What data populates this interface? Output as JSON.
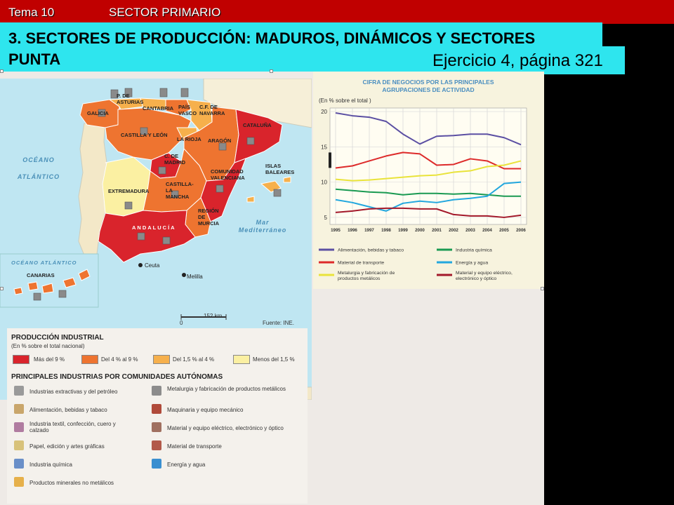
{
  "header": {
    "tema": "Tema 10",
    "sector": "SECTOR PRIMARIO",
    "title": "3. SECTORES DE PRODUCCIÓN: MADUROS, DINÁMICOS Y SECTORES PUNTA",
    "exercise": "Ejercicio 4, página 321"
  },
  "map": {
    "regions": [
      "GALICIA",
      "P. DE ASTURIAS",
      "CANTABRIA",
      "PAÍS VASCO",
      "C.F. DE NAVARRA",
      "CASTILLA Y LEÓN",
      "LA RIOJA",
      "ARAGÓN",
      "CATALUÑA",
      "C. DE MADRID",
      "EXTREMADURA",
      "CASTILLA-LA MANCHA",
      "COMUNIDAD VALENCIANA",
      "ISLAS BALEARES",
      "REGIÓN DE MURCIA",
      "ANDALUCÍA",
      "CANARIAS"
    ],
    "cities": [
      "Ceuta",
      "Melilla"
    ],
    "seas": [
      "OCÉANO ATLÁNTICO",
      "Mar Mediterráneo",
      "OCÉANO ATLÁNTICO"
    ],
    "scale": {
      "zero": "0",
      "value": "152 km"
    },
    "source": "Fuente: INE."
  },
  "legend": {
    "title": "PRODUCCIÓN INDUSTRIAL",
    "subtitle": "(En % sobre el total nacional)",
    "classes": [
      {
        "label": "Más del 9 %",
        "color": "#d9242c"
      },
      {
        "label": "Del 4 % al 9 %",
        "color": "#ee7430"
      },
      {
        "label": "Del 1,5 % al 4 %",
        "color": "#f6b04c"
      },
      {
        "label": "Menos del 1,5 %",
        "color": "#fbf0a2"
      }
    ],
    "industries_title": "PRINCIPALES INDUSTRIAS POR COMUNIDADES AUTÓNOMAS",
    "industries": [
      {
        "label": "Industrias extractivas y del petróleo",
        "icon": "oil-rig-icon"
      },
      {
        "label": "Metalurgia y fabricación de productos metálicos",
        "icon": "factory-icon"
      },
      {
        "label": "Alimentación, bebidas y tabaco",
        "icon": "food-icon"
      },
      {
        "label": "Maquinaria y equipo mecánico",
        "icon": "gear-wrench-icon"
      },
      {
        "label": "Industria textil, confección, cuero y calzado",
        "icon": "textile-icon"
      },
      {
        "label": "Material y equipo eléctrico, electrónico y óptico",
        "icon": "computer-icon"
      },
      {
        "label": "Papel, edición y artes gráficas",
        "icon": "paper-icon"
      },
      {
        "label": "Material de transporte",
        "icon": "car-icon"
      },
      {
        "label": "Industria química",
        "icon": "flask-icon"
      },
      {
        "label": "Energía y agua",
        "icon": "energy-water-icon"
      },
      {
        "label": "Productos minerales no metálicos",
        "icon": "minerals-icon"
      }
    ]
  },
  "chart_data": {
    "type": "line",
    "title": "CIFRA DE NEGOCIOS POR LAS PRINCIPALES AGRUPACIONES DE ACTIVIDAD",
    "ylabel": "(En % sobre el total )",
    "x": [
      "1995",
      "1996",
      "1997",
      "1998",
      "1999",
      "2000",
      "2001",
      "2002",
      "2003",
      "2004",
      "2005",
      "2006"
    ],
    "yticks": [
      "20",
      "15",
      "10",
      "5"
    ],
    "ylim": [
      4,
      20.5
    ],
    "series": [
      {
        "name": "Alimentación, bebidas y tabaco",
        "color": "#5b4fa3",
        "values": [
          19.8,
          19.4,
          19.2,
          18.6,
          16.8,
          15.4,
          16.5,
          16.6,
          16.8,
          16.8,
          16.3,
          15.3
        ]
      },
      {
        "name": "Industria química",
        "color": "#1a9a52",
        "values": [
          9.0,
          8.8,
          8.6,
          8.5,
          8.2,
          8.4,
          8.4,
          8.3,
          8.4,
          8.2,
          8.0,
          8.0
        ]
      },
      {
        "name": "Material de transporte",
        "color": "#dd2a2a",
        "values": [
          12.0,
          12.3,
          13.0,
          13.7,
          14.2,
          14.0,
          12.4,
          12.5,
          13.3,
          13.0,
          11.9,
          11.9
        ]
      },
      {
        "name": "Energía y agua",
        "color": "#22a7de",
        "values": [
          7.5,
          7.1,
          6.5,
          5.9,
          7.0,
          7.3,
          7.1,
          7.5,
          7.7,
          8.0,
          9.8,
          10.0
        ]
      },
      {
        "name": "Metalurgia y fabricación de productos metálicos",
        "color": "#e9e33a",
        "values": [
          10.4,
          10.2,
          10.3,
          10.5,
          10.7,
          10.9,
          11.0,
          11.4,
          11.6,
          12.2,
          12.4,
          13.0
        ]
      },
      {
        "name": "Material y equipo eléctrico, electrónico y óptico",
        "color": "#a3182a",
        "values": [
          5.7,
          5.9,
          6.2,
          6.3,
          6.3,
          6.2,
          6.2,
          5.4,
          5.2,
          5.2,
          5.0,
          5.3
        ]
      }
    ]
  }
}
